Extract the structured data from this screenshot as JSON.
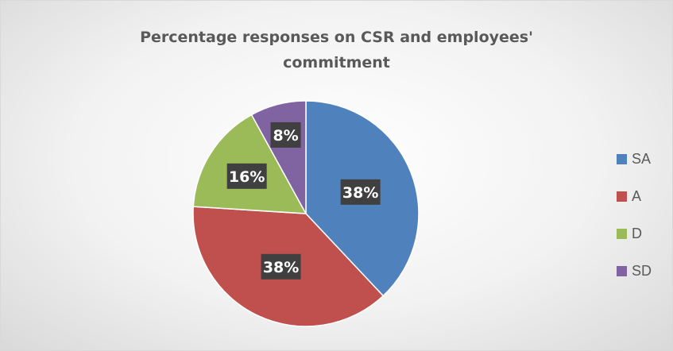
{
  "chart_data": {
    "type": "pie",
    "title": "Percentage responses on CSR and employees' commitment",
    "title_lines": [
      "Percentage responses on CSR and employees'",
      "commitment"
    ],
    "categories": [
      "SA",
      "A",
      "D",
      "SD"
    ],
    "values": [
      38,
      38,
      16,
      8
    ],
    "data_labels": [
      "38%",
      "38%",
      "16%",
      "8%"
    ],
    "colors": [
      "#4f81bd",
      "#c0504d",
      "#9bbb59",
      "#8064a2"
    ],
    "legend_position": "right",
    "start_angle": "12 o'clock, clockwise"
  }
}
